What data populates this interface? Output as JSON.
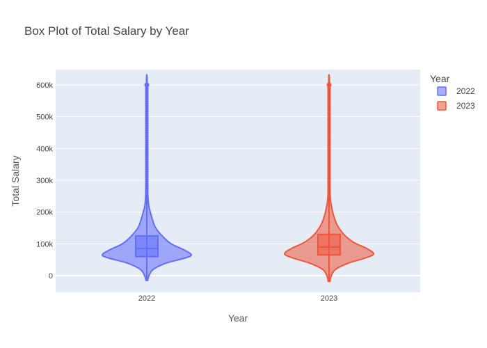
{
  "chart_data": {
    "type": "violin",
    "title": "Box Plot of Total Salary by Year",
    "xlabel": "Year",
    "ylabel": "Total Salary",
    "categories": [
      "2022",
      "2023"
    ],
    "y_ticks": [
      0,
      100000,
      200000,
      300000,
      400000,
      500000,
      600000
    ],
    "y_tick_labels": [
      "0",
      "100k",
      "200k",
      "300k",
      "400k",
      "500k",
      "600k"
    ],
    "ylim": [
      -50000,
      640000
    ],
    "grid": true,
    "legend": {
      "title": "Year",
      "placement": "right"
    },
    "series": [
      {
        "name": "2022",
        "color": "#636efa",
        "box": {
          "q1": 60000,
          "median": 85000,
          "q3": 125000
        },
        "whisker": {
          "low": -15000,
          "high": 225000
        },
        "outlier_max": 600000,
        "density": [
          [
            -15000,
            0.02
          ],
          [
            0,
            0.05
          ],
          [
            20000,
            0.15
          ],
          [
            40000,
            0.45
          ],
          [
            55000,
            0.85
          ],
          [
            65000,
            1.0
          ],
          [
            80000,
            0.85
          ],
          [
            100000,
            0.55
          ],
          [
            120000,
            0.38
          ],
          [
            150000,
            0.2
          ],
          [
            180000,
            0.12
          ],
          [
            200000,
            0.08
          ],
          [
            215000,
            0.05
          ],
          [
            240000,
            0.03
          ],
          [
            300000,
            0.015
          ],
          [
            450000,
            0.01
          ],
          [
            612000,
            0.008
          ]
        ]
      },
      {
        "name": "2023",
        "color": "#ef553b",
        "box": {
          "q1": 65000,
          "median": 90000,
          "q3": 130000
        },
        "whisker": {
          "low": -18000,
          "high": 235000
        },
        "outlier_max": 600000,
        "density": [
          [
            -18000,
            0.02
          ],
          [
            0,
            0.05
          ],
          [
            20000,
            0.15
          ],
          [
            40000,
            0.45
          ],
          [
            55000,
            0.8
          ],
          [
            68000,
            1.0
          ],
          [
            85000,
            0.85
          ],
          [
            105000,
            0.55
          ],
          [
            130000,
            0.33
          ],
          [
            160000,
            0.18
          ],
          [
            190000,
            0.1
          ],
          [
            215000,
            0.06
          ],
          [
            240000,
            0.03
          ],
          [
            300000,
            0.015
          ],
          [
            450000,
            0.01
          ],
          [
            612000,
            0.008
          ]
        ]
      }
    ]
  }
}
